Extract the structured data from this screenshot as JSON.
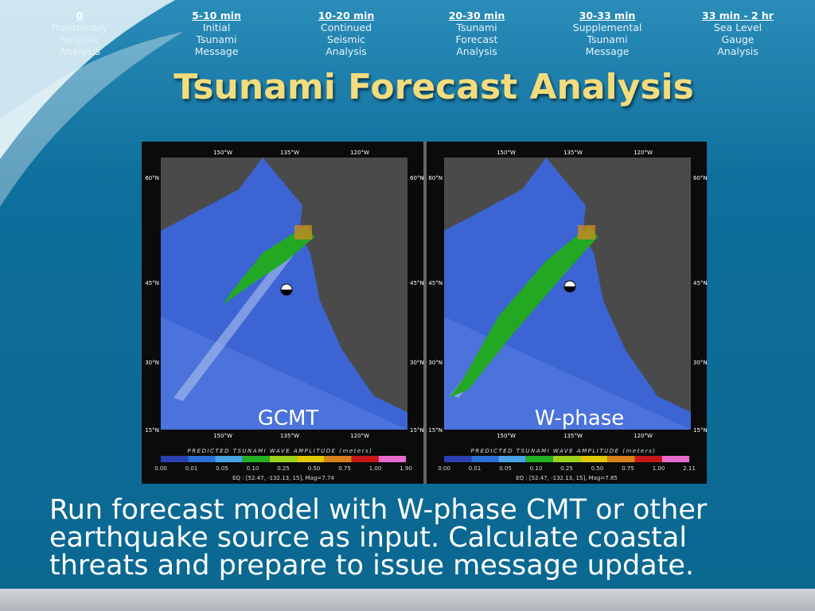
{
  "timeline": [
    {
      "time": "0",
      "label": [
        "Preliminary",
        "Seismic",
        "Analysis"
      ]
    },
    {
      "time": "5-10 min",
      "label": [
        "Initial",
        "Tsunami",
        "Message"
      ]
    },
    {
      "time": "10-20 min",
      "label": [
        "Continued",
        "Seismic",
        "Analysis"
      ]
    },
    {
      "time": "20-30 min",
      "label": [
        "Tsunami",
        "Forecast",
        "Analysis"
      ]
    },
    {
      "time": "30-33 min",
      "label": [
        "Supplemental",
        "Tsunami",
        "Message"
      ]
    },
    {
      "time": "33 min - 2 hr",
      "label": [
        "Sea Level",
        "Gauge",
        "Analysis"
      ]
    }
  ],
  "title": "Tsunami Forecast Analysis",
  "maps": {
    "longitudes": [
      "150°W",
      "135°W",
      "120°W"
    ],
    "latitudes": [
      "60°N",
      "45°N",
      "30°N",
      "15°N"
    ],
    "legend_title": "PREDICTED TSUNAMI WAVE AMPLITUDE (meters)",
    "panels": [
      {
        "label": "GCMT",
        "scale": [
          "0.00",
          "0.01",
          "0.05",
          "0.10",
          "0.25",
          "0.50",
          "0.75",
          "1.00",
          "1.90"
        ],
        "caption": "EQ : [52.47, -132.13, 15], Mag=7.74"
      },
      {
        "label": "W-phase",
        "scale": [
          "0.00",
          "0.01",
          "0.05",
          "0.10",
          "0.25",
          "0.50",
          "0.75",
          "1.00",
          "2.11"
        ],
        "caption": "EQ : [52.47, -132.13, 15], Mag=7.85"
      }
    ]
  },
  "body": [
    "Run forecast model with W-phase CMT or other",
    "earthquake source as input. Calculate coastal",
    "threats and prepare to issue message update."
  ]
}
